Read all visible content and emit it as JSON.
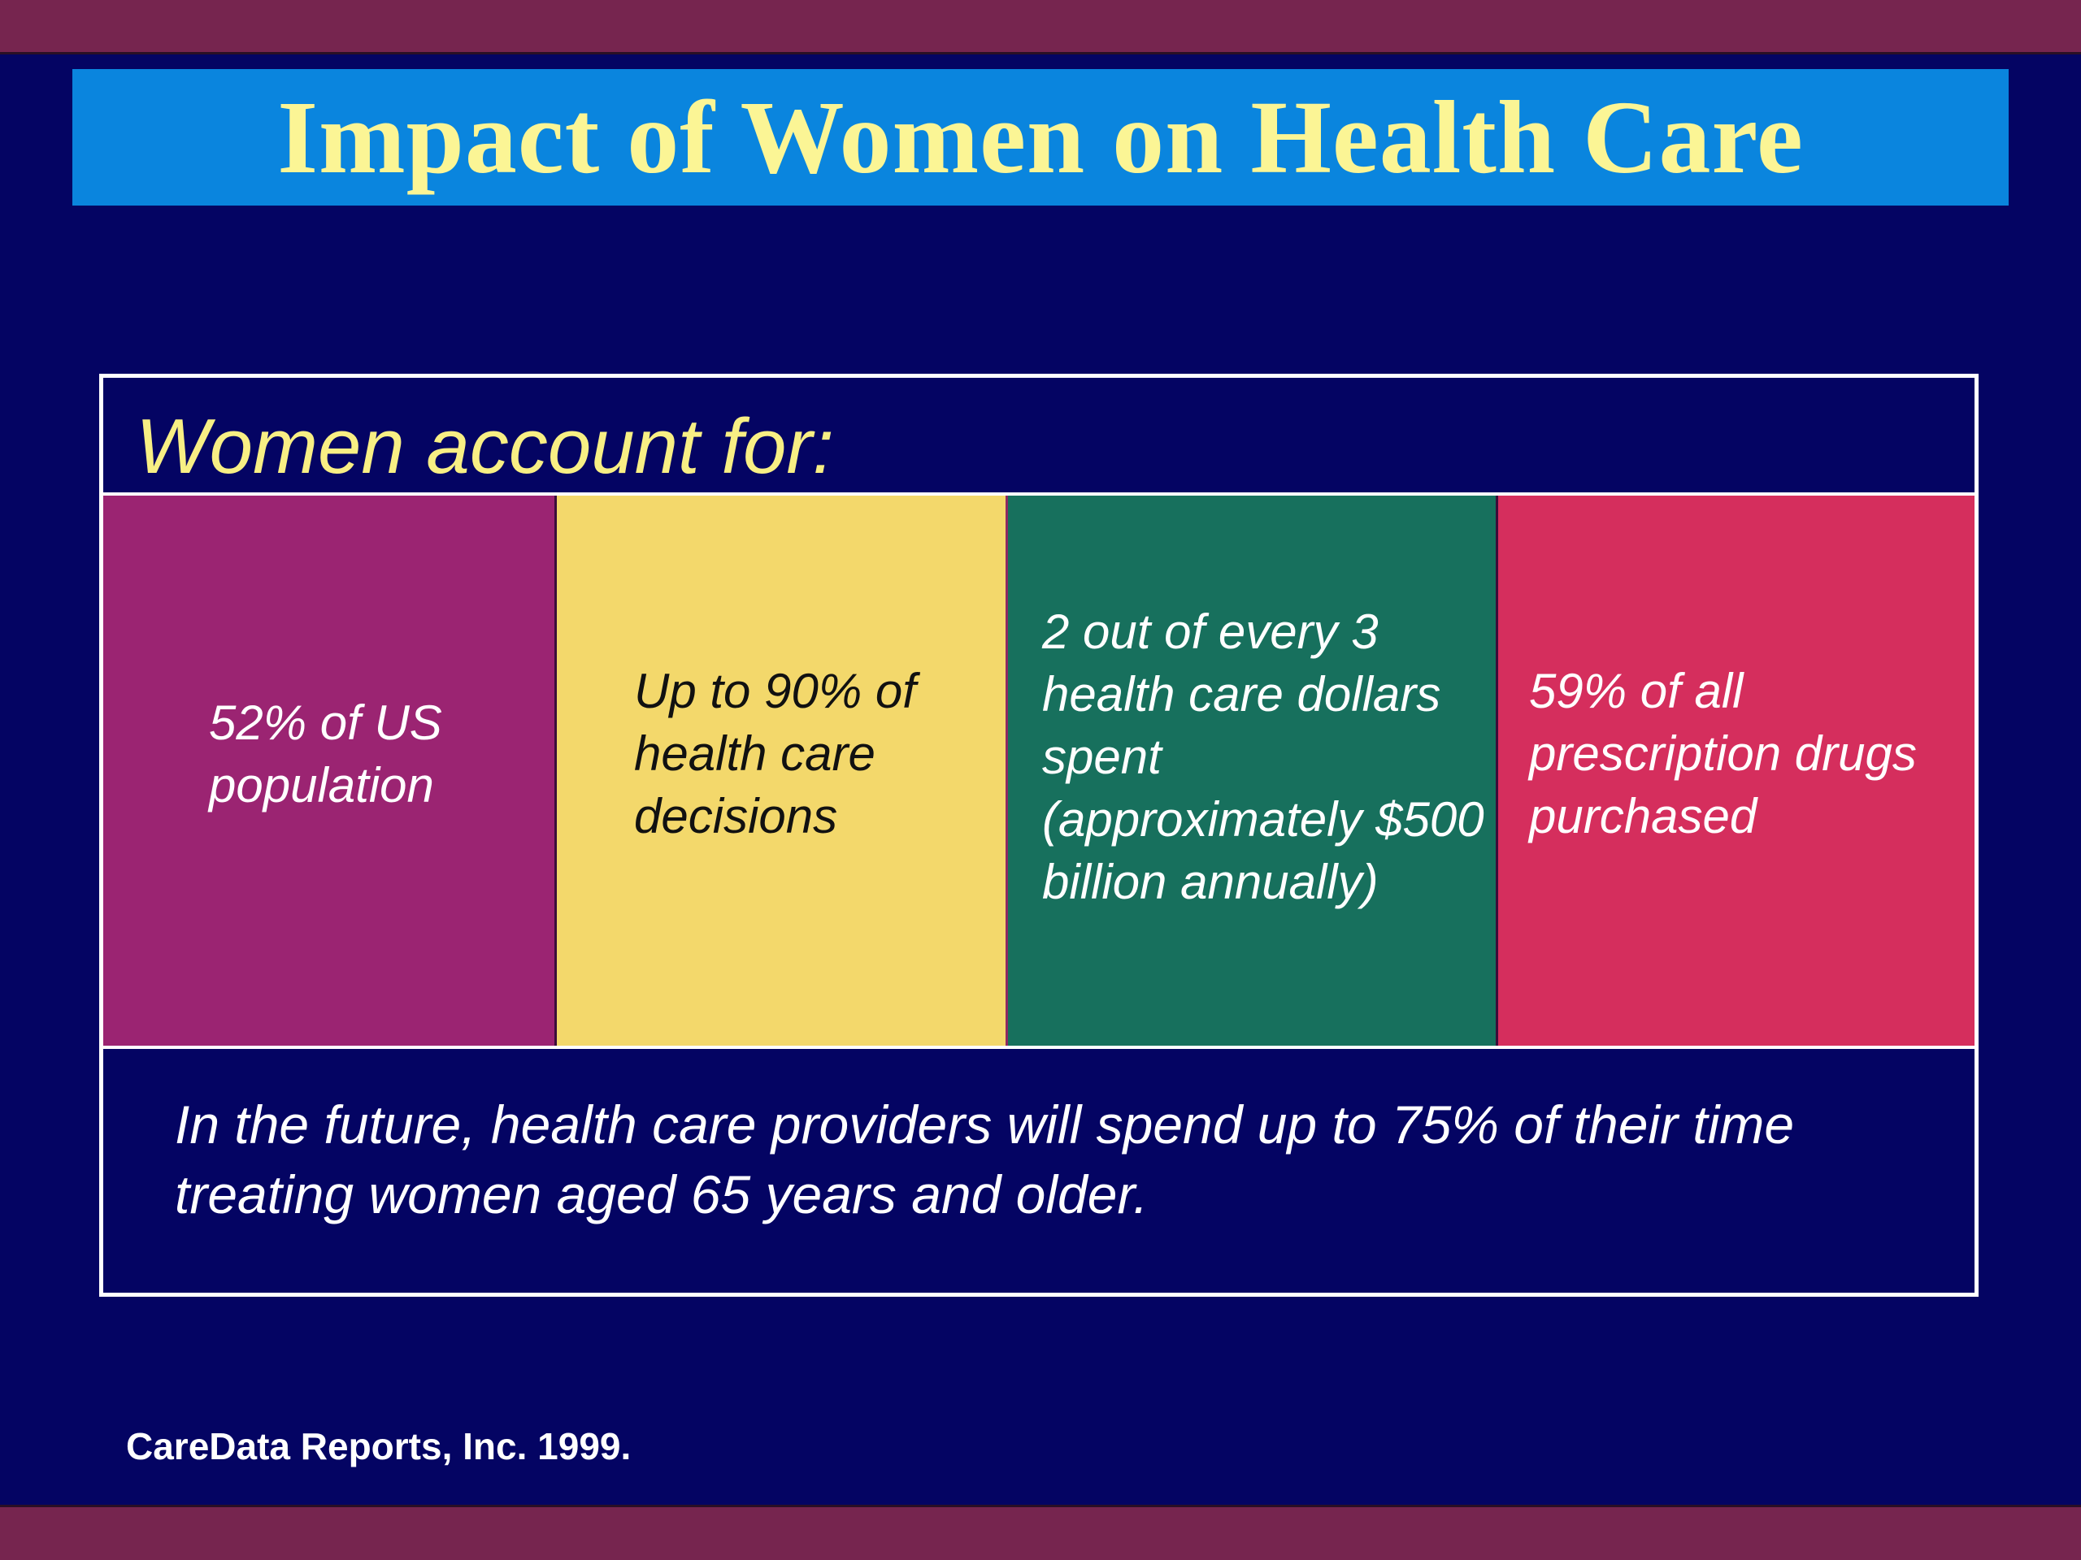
{
  "slide": {
    "title": "Impact of Women on Health Care",
    "heading": "Women account for:",
    "cells": [
      {
        "text": "52% of US population"
      },
      {
        "text": "Up to 90% of health care decisions"
      },
      {
        "text": "2 out of every 3 health care dollars spent (approximately $500 billion annually)"
      },
      {
        "text": "59% of all prescription drugs purchased"
      }
    ],
    "footer": "In the future, health care providers will spend up to 75% of their time treating women aged 65 years and older.",
    "source": "CareData Reports, Inc. 1999."
  },
  "colors": {
    "background": "#040463",
    "accent_bars": "#76254f",
    "title_band": "#0a85de",
    "title_text": "#fbf595",
    "heading_text": "#f8ef84",
    "cell_1": "#9b2472",
    "cell_2": "#f3d86b",
    "cell_3": "#17705d",
    "cell_4": "#d52e5d"
  }
}
